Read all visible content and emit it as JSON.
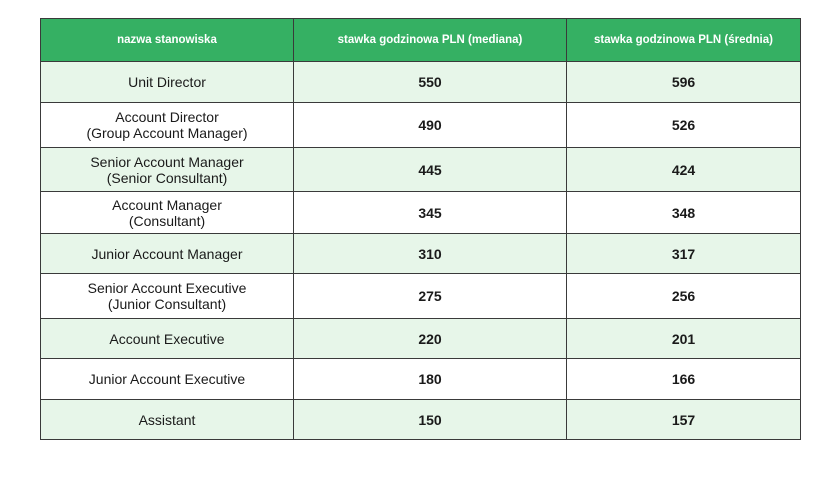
{
  "table": {
    "headers": [
      "nazwa stanowiska",
      "stawka godzinowa PLN (mediana)",
      "stawka godzinowa PLN (średnia)"
    ],
    "rows": [
      {
        "title": "Unit Director",
        "subtitle": "",
        "median": "550",
        "mean": "596"
      },
      {
        "title": "Account Director",
        "subtitle": "(Group Account Manager)",
        "median": "490",
        "mean": "526"
      },
      {
        "title": "Senior Account Manager",
        "subtitle": "(Senior Consultant)",
        "median": "445",
        "mean": "424"
      },
      {
        "title": "Account Manager",
        "subtitle": "(Consultant)",
        "median": "345",
        "mean": "348"
      },
      {
        "title": "Junior Account Manager",
        "subtitle": "",
        "median": "310",
        "mean": "317"
      },
      {
        "title": "Senior Account Executive",
        "subtitle": "(Junior Consultant)",
        "median": "275",
        "mean": "256"
      },
      {
        "title": "Account Executive",
        "subtitle": "",
        "median": "220",
        "mean": "201"
      },
      {
        "title": "Junior Account Executive",
        "subtitle": "",
        "median": "180",
        "mean": "166"
      },
      {
        "title": "Assistant",
        "subtitle": "",
        "median": "150",
        "mean": "157"
      }
    ]
  },
  "colors": {
    "header_bg": "#35b063",
    "shaded_row_bg": "#e7f6e9",
    "border": "#3a3a3a"
  }
}
